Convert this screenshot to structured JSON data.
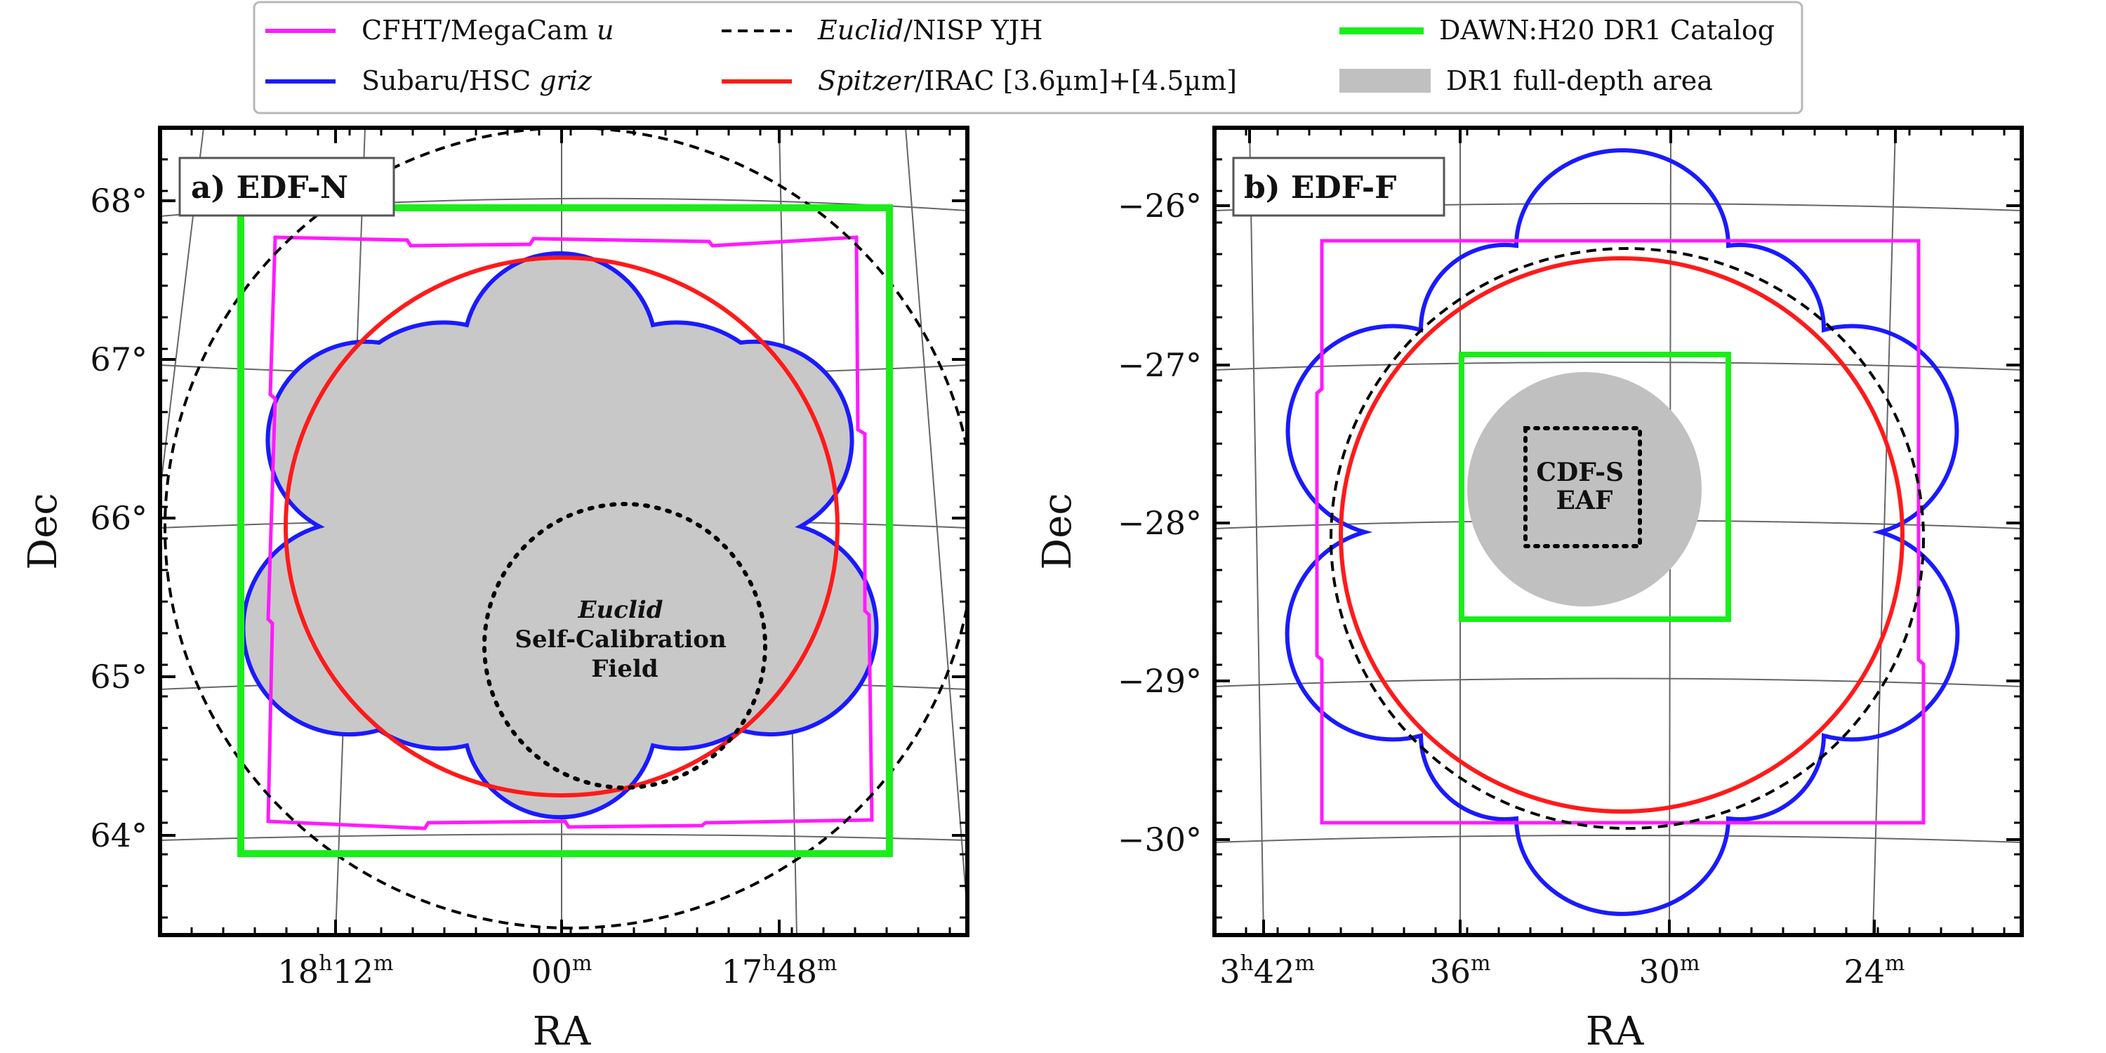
{
  "legend": {
    "items": [
      {
        "key": "megacam",
        "label": "CFHT/MegaCam",
        "italic_suffix": "u",
        "color": "#ff1aff",
        "style": "solid"
      },
      {
        "key": "hsc",
        "label": "Subaru/HSC",
        "italic_suffix": "griz",
        "color": "#1a1aff",
        "style": "solid"
      },
      {
        "key": "nisp",
        "italic_prefix": "Euclid",
        "label": "/NISP YJH",
        "color": "#000000",
        "style": "dashed"
      },
      {
        "key": "irac",
        "italic_prefix": "Spitzer",
        "label": "/IRAC [3.6µm]+[4.5µm]",
        "color": "#ff1a1a",
        "style": "solid"
      },
      {
        "key": "dawn",
        "label": "DAWN:H20 DR1 Catalog",
        "color": "#1aee1a",
        "style": "solid"
      },
      {
        "key": "fulldepth",
        "label": "DR1 full-depth area",
        "color": "#c0c0c0",
        "style": "patch"
      }
    ]
  },
  "panels": {
    "a": {
      "title": "a) EDF-N",
      "xlabel": "RA",
      "ylabel": "Dec",
      "yticks": [
        "68°",
        "67°",
        "66°",
        "65°",
        "64°"
      ],
      "xticks": [
        {
          "main": "18",
          "sup1": "h",
          "min": "12",
          "sup2": "m"
        },
        {
          "main": "",
          "sup1": "",
          "min": "00",
          "sup2": "m"
        },
        {
          "main": "17",
          "sup1": "h",
          "min": "48",
          "sup2": "m"
        }
      ],
      "annotation": {
        "line1_italic": "Euclid",
        "line2": "Self-Calibration",
        "line3": "Field"
      }
    },
    "b": {
      "title": "b) EDF-F",
      "xlabel": "RA",
      "ylabel": "Dec",
      "yticks": [
        "−26°",
        "−27°",
        "−28°",
        "−29°",
        "−30°"
      ],
      "xticks": [
        {
          "main": "3",
          "sup1": "h",
          "min": "42",
          "sup2": "m"
        },
        {
          "main": "",
          "sup1": "",
          "min": "36",
          "sup2": "m"
        },
        {
          "main": "",
          "sup1": "",
          "min": "30",
          "sup2": "m"
        },
        {
          "main": "",
          "sup1": "",
          "min": "24",
          "sup2": "m"
        }
      ],
      "annotation": {
        "line1": "CDF-S",
        "line2": "EAF"
      }
    }
  }
}
